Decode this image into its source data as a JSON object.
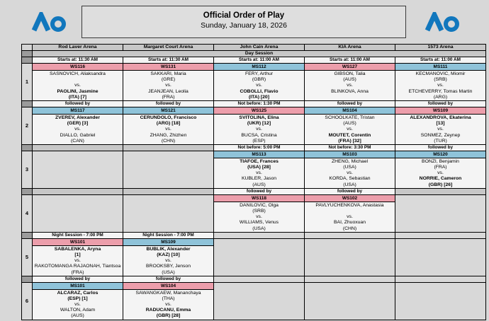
{
  "header": {
    "title": "Official Order of Play",
    "date": "Sunday, January 18, 2026",
    "logo_color": "#1177BD"
  },
  "table": {
    "session_label": "Day Session",
    "arenas": [
      "Rod Laver Arena",
      "Margaret Court Arena",
      "John Cain Arena",
      "KIA Arena",
      "1573 Arena"
    ],
    "colors": {
      "WS": "#EC9EAB",
      "MS": "#8FC3D9"
    },
    "rows": [
      {
        "num": "1",
        "cells": [
          {
            "time": "Starts at: 11:30 AM",
            "code": "WS116",
            "type": "WS",
            "lines": [
              {
                "t": "SASNOVICH, Aliaksandra",
                "b": false
              },
              {
                "t": "",
                "b": false
              },
              {
                "t": "vs.",
                "b": false
              },
              {
                "t": "PAOLINI, Jasmine",
                "b": true
              },
              {
                "t": "(ITA) [7]",
                "b": true
              }
            ]
          },
          {
            "time": "Starts at: 11:30 AM",
            "code": "WS131",
            "type": "WS",
            "lines": [
              {
                "t": "SAKKARI, Maria",
                "b": false
              },
              {
                "t": "(GRE)",
                "b": false
              },
              {
                "t": "vs.",
                "b": false
              },
              {
                "t": "JEANJEAN, Leolia",
                "b": false
              },
              {
                "t": "(FRA)",
                "b": false
              }
            ]
          },
          {
            "time": "Starts at: 11:00 AM",
            "code": "MS112",
            "type": "MS",
            "lines": [
              {
                "t": "FERY, Arthur",
                "b": false
              },
              {
                "t": "(GBR)",
                "b": false
              },
              {
                "t": "vs.",
                "b": false
              },
              {
                "t": "COBOLLI, Flavio",
                "b": true
              },
              {
                "t": "(ITA) [20]",
                "b": true
              }
            ]
          },
          {
            "time": "Starts at: 11:00 AM",
            "code": "WS127",
            "type": "WS",
            "lines": [
              {
                "t": "GIBSON, Talia",
                "b": false
              },
              {
                "t": "(AUS)",
                "b": false
              },
              {
                "t": "vs.",
                "b": false
              },
              {
                "t": "BLINKOVA, Anna",
                "b": false
              },
              {
                "t": "",
                "b": false
              }
            ]
          },
          {
            "time": "Starts at: 11:00 AM",
            "code": "MS111",
            "type": "MS",
            "lines": [
              {
                "t": "KECMANOVIC, Miomir",
                "b": false
              },
              {
                "t": "(SRB)",
                "b": false
              },
              {
                "t": "vs.",
                "b": false
              },
              {
                "t": "ETCHEVERRY, Tomas Martin",
                "b": false
              },
              {
                "t": "(ARG)",
                "b": false
              }
            ]
          }
        ]
      },
      {
        "num": "2",
        "cells": [
          {
            "time": "followed by",
            "code": "MS117",
            "type": "MS",
            "lines": [
              {
                "t": "ZVEREV, Alexander",
                "b": true
              },
              {
                "t": "(GER) [3]",
                "b": true
              },
              {
                "t": "vs.",
                "b": false
              },
              {
                "t": "DIALLO, Gabriel",
                "b": false
              },
              {
                "t": "(CAN)",
                "b": false
              }
            ]
          },
          {
            "time": "followed by",
            "code": "MS121",
            "type": "MS",
            "lines": [
              {
                "t": "CERUNDOLO, Francisco",
                "b": true
              },
              {
                "t": "(ARG) [18]",
                "b": true
              },
              {
                "t": "vs.",
                "b": false
              },
              {
                "t": "ZHANG, Zhizhen",
                "b": false
              },
              {
                "t": "(CHN)",
                "b": false
              }
            ]
          },
          {
            "time": "Not before: 1:30 PM",
            "code": "WS125",
            "type": "WS",
            "lines": [
              {
                "t": "SVITOLINA, Elina",
                "b": true
              },
              {
                "t": "(UKR) [12]",
                "b": true
              },
              {
                "t": "vs.",
                "b": false
              },
              {
                "t": "BUCSA, Cristina",
                "b": false
              },
              {
                "t": "(ESP)",
                "b": false
              }
            ]
          },
          {
            "time": "followed by",
            "code": "MS104",
            "type": "MS",
            "lines": [
              {
                "t": "SCHOOLKATE, Tristan",
                "b": false
              },
              {
                "t": "(AUS)",
                "b": false
              },
              {
                "t": "vs.",
                "b": false
              },
              {
                "t": "MOUTET, Corentin",
                "b": true
              },
              {
                "t": "(FRA) [32]",
                "b": true
              }
            ]
          },
          {
            "time": "followed by",
            "code": "WS109",
            "type": "WS",
            "lines": [
              {
                "t": "ALEXANDROVA, Ekaterina",
                "b": true
              },
              {
                "t": "[13]",
                "b": true
              },
              {
                "t": "vs.",
                "b": false
              },
              {
                "t": "SONMEZ, Zeynep",
                "b": false
              },
              {
                "t": "(TUR)",
                "b": false
              }
            ]
          }
        ]
      },
      {
        "num": "3",
        "cells": [
          {
            "empty": true
          },
          {
            "empty": true
          },
          {
            "time": "Not before: 5:00 PM",
            "code": "MS113",
            "type": "MS",
            "lines": [
              {
                "t": "TIAFOE, Frances",
                "b": true
              },
              {
                "t": "(USA) [28]",
                "b": true
              },
              {
                "t": "vs.",
                "b": false
              },
              {
                "t": "KUBLER, Jason",
                "b": false
              },
              {
                "t": "(AUS)",
                "b": false
              }
            ]
          },
          {
            "time": "Not before: 3:30 PM",
            "code": "MS103",
            "type": "MS",
            "lines": [
              {
                "t": "ZHENG, Michael",
                "b": false
              },
              {
                "t": "(USA)",
                "b": false
              },
              {
                "t": "vs.",
                "b": false
              },
              {
                "t": "KORDA, Sebastian",
                "b": false
              },
              {
                "t": "(USA)",
                "b": false
              }
            ]
          },
          {
            "time": "followed by",
            "code": "MS120",
            "type": "MS",
            "lines": [
              {
                "t": "BONZI, Benjamin",
                "b": false
              },
              {
                "t": "(FRA)",
                "b": false
              },
              {
                "t": "vs.",
                "b": false
              },
              {
                "t": "NORRIE, Cameron",
                "b": true
              },
              {
                "t": "(GBR) [26]",
                "b": true
              }
            ]
          }
        ]
      },
      {
        "num": "4",
        "cells": [
          {
            "empty": true
          },
          {
            "empty": true
          },
          {
            "time": "followed by",
            "code": "WS118",
            "type": "WS",
            "lines": [
              {
                "t": "DANILOVIC, Olga",
                "b": false
              },
              {
                "t": "(SRB)",
                "b": false
              },
              {
                "t": "vs.",
                "b": false
              },
              {
                "t": "WILLIAMS, Venus",
                "b": false
              },
              {
                "t": "(USA)",
                "b": false
              }
            ]
          },
          {
            "time": "followed by",
            "code": "WS102",
            "type": "WS",
            "lines": [
              {
                "t": "PAVLYUCHENKOVA, Anastasia",
                "b": false
              },
              {
                "t": "",
                "b": false
              },
              {
                "t": "vs.",
                "b": false
              },
              {
                "t": "BAI, Zhuoxuan",
                "b": false
              },
              {
                "t": "(CHN)",
                "b": false
              }
            ]
          },
          {
            "empty": true
          }
        ]
      },
      {
        "num": "5",
        "cells": [
          {
            "time": "Night Session - 7:00 PM",
            "code": "WS101",
            "type": "WS",
            "lines": [
              {
                "t": "SABALENKA, Aryna",
                "b": true
              },
              {
                "t": "[1]",
                "b": true
              },
              {
                "t": "vs.",
                "b": false
              },
              {
                "t": "RAKOTOMANGA RAJAONAH, Tiantsoa",
                "b": false
              },
              {
                "t": "(FRA)",
                "b": false
              }
            ]
          },
          {
            "time": "Night Session - 7:00 PM",
            "code": "MS109",
            "type": "MS",
            "lines": [
              {
                "t": "BUBLIK, Alexander",
                "b": true
              },
              {
                "t": "(KAZ) [10]",
                "b": true
              },
              {
                "t": "vs.",
                "b": false
              },
              {
                "t": "BROOKSBY, Jenson",
                "b": false
              },
              {
                "t": "(USA)",
                "b": false
              }
            ]
          },
          {
            "absent": true
          },
          {
            "absent": true
          },
          {
            "absent": true
          }
        ]
      },
      {
        "num": "6",
        "cells": [
          {
            "time": "followed by",
            "code": "MS101",
            "type": "MS",
            "lines": [
              {
                "t": "ALCARAZ, Carlos",
                "b": true
              },
              {
                "t": "(ESP) [1]",
                "b": true
              },
              {
                "t": "vs.",
                "b": false
              },
              {
                "t": "WALTON, Adam",
                "b": false
              },
              {
                "t": "(AUS)",
                "b": false
              }
            ]
          },
          {
            "time": "followed by",
            "code": "WS104",
            "type": "WS",
            "lines": [
              {
                "t": "SAWANGKAEW, Mananchaya",
                "b": false
              },
              {
                "t": "(THA)",
                "b": false
              },
              {
                "t": "vs.",
                "b": false
              },
              {
                "t": "RADUCANU, Emma",
                "b": true
              },
              {
                "t": "(GBR) [28]",
                "b": true
              }
            ]
          },
          {
            "absent": true
          },
          {
            "absent": true
          },
          {
            "absent": true
          }
        ]
      }
    ]
  }
}
